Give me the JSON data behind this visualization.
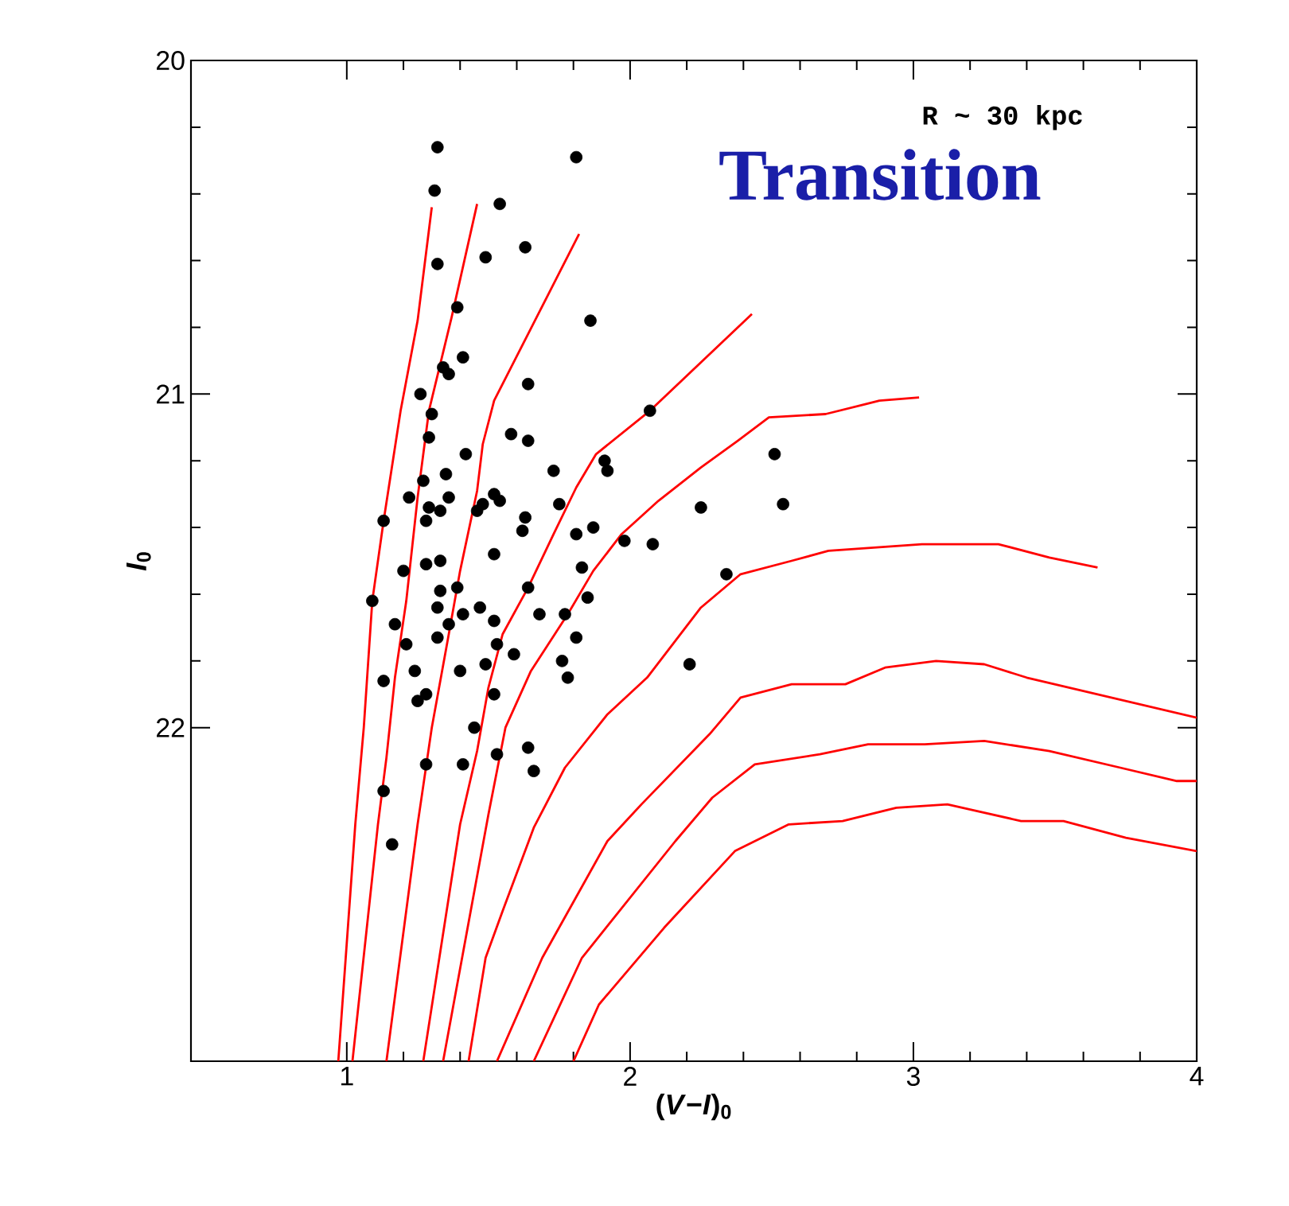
{
  "chart_data": {
    "type": "line",
    "title": "Transition",
    "annotations": [
      "R ~ 30 kpc"
    ],
    "xlabel": "(*V*−*I*)$_{0}$",
    "ylabel": "*I*$_{0}$",
    "xlim": [
      0.45,
      4
    ],
    "ylim": [
      23,
      20
    ],
    "xticks": [
      1,
      2,
      3,
      4
    ],
    "yticks": [
      20,
      21,
      22
    ],
    "series": [
      {
        "color": "#ff0000",
        "x": [
          0.97,
          1.03,
          1.06,
          1.09,
          1.13,
          1.19,
          1.25,
          1.3
        ],
        "values": [
          23,
          22.29,
          22.0,
          21.62,
          21.38,
          21.05,
          20.78,
          20.44
        ]
      },
      {
        "color": "#ff0000",
        "x": [
          1.02,
          1.11,
          1.14,
          1.17,
          1.21,
          1.25,
          1.29,
          1.37,
          1.46
        ],
        "values": [
          23,
          22.29,
          22.09,
          21.85,
          21.62,
          21.31,
          21.05,
          20.77,
          20.43
        ]
      },
      {
        "color": "#ff0000",
        "x": [
          1.14,
          1.25,
          1.3,
          1.36,
          1.4,
          1.46,
          1.48,
          1.52,
          1.67,
          1.82
        ],
        "values": [
          23,
          22.29,
          22.0,
          21.72,
          21.53,
          21.29,
          21.15,
          21.02,
          20.77,
          20.52
        ]
      },
      {
        "color": "#ff0000",
        "x": [
          1.27,
          1.4,
          1.46,
          1.5,
          1.55,
          1.64,
          1.73,
          1.81,
          1.88,
          2.07,
          2.43
        ],
        "values": [
          23,
          22.29,
          22.07,
          21.88,
          21.72,
          21.58,
          21.42,
          21.28,
          21.18,
          21.05,
          20.76
        ]
      },
      {
        "color": "#ff0000",
        "x": [
          1.34,
          1.5,
          1.56,
          1.65,
          1.78,
          1.87,
          1.97,
          2.1,
          2.25,
          2.38,
          2.49,
          2.69,
          2.88,
          3.02
        ],
        "values": [
          23,
          22.26,
          22.0,
          21.83,
          21.66,
          21.53,
          21.42,
          21.32,
          21.22,
          21.14,
          21.07,
          21.06,
          21.02,
          21.01
        ]
      },
      {
        "color": "#ff0000",
        "x": [
          1.43,
          1.49,
          1.55,
          1.66,
          1.77,
          1.92,
          2.06,
          2.25,
          2.39,
          2.57,
          2.7,
          3.03,
          3.3,
          3.48,
          3.65
        ],
        "values": [
          23,
          22.69,
          22.55,
          22.3,
          22.12,
          21.96,
          21.85,
          21.64,
          21.54,
          21.5,
          21.47,
          21.45,
          21.45,
          21.49,
          21.52
        ]
      },
      {
        "color": "#ff0000",
        "x": [
          1.53,
          1.69,
          1.92,
          2.04,
          2.28,
          2.39,
          2.57,
          2.76,
          2.9,
          3.08,
          3.25,
          3.4,
          4.0
        ],
        "values": [
          23,
          22.69,
          22.34,
          22.23,
          22.02,
          21.91,
          21.87,
          21.87,
          21.82,
          21.8,
          21.81,
          21.85,
          21.97
        ]
      },
      {
        "color": "#ff0000",
        "x": [
          1.66,
          1.83,
          2.16,
          2.29,
          2.44,
          2.67,
          2.84,
          3.04,
          3.25,
          3.48,
          3.73,
          3.93,
          4.0
        ],
        "values": [
          23,
          22.69,
          22.34,
          22.21,
          22.11,
          22.08,
          22.05,
          22.05,
          22.04,
          22.07,
          22.12,
          22.16,
          22.16
        ]
      },
      {
        "color": "#ff0000",
        "x": [
          1.8,
          1.89,
          2.12,
          2.37,
          2.56,
          2.75,
          2.94,
          3.12,
          3.38,
          3.53,
          3.75,
          4.0
        ],
        "values": [
          23,
          22.83,
          22.6,
          22.37,
          22.29,
          22.28,
          22.24,
          22.23,
          22.28,
          22.28,
          22.33,
          22.37
        ]
      },
      {
        "type": "scatter",
        "marker": "circle",
        "color": "#000000",
        "x": [
          1.32,
          1.31,
          1.54,
          1.81,
          1.63,
          1.49,
          1.32,
          1.39,
          1.86,
          1.41,
          1.34,
          1.36,
          1.26,
          1.64,
          2.07,
          1.3,
          1.29,
          1.58,
          1.64,
          1.42,
          1.73,
          1.91,
          1.92,
          1.27,
          1.35,
          1.22,
          1.29,
          1.36,
          1.33,
          1.28,
          1.46,
          1.48,
          1.52,
          1.54,
          1.75,
          1.63,
          1.62,
          1.81,
          1.87,
          1.98,
          2.08,
          1.13,
          1.52,
          1.83,
          1.2,
          1.28,
          1.33,
          1.33,
          1.39,
          1.64,
          1.32,
          1.09,
          1.36,
          1.41,
          1.47,
          1.52,
          1.68,
          1.77,
          1.85,
          1.17,
          1.32,
          1.53,
          1.59,
          1.81,
          1.21,
          1.24,
          1.13,
          1.4,
          1.49,
          1.52,
          1.76,
          1.78,
          1.28,
          1.25,
          1.45,
          1.64,
          1.66,
          1.53,
          1.28,
          1.41,
          1.13,
          1.16,
          2.51,
          2.54,
          2.25,
          2.34,
          2.21
        ],
        "values": [
          20.26,
          20.39,
          20.43,
          20.29,
          20.56,
          20.59,
          20.61,
          20.74,
          20.78,
          20.89,
          20.92,
          20.94,
          21.0,
          20.97,
          21.05,
          21.06,
          21.13,
          21.12,
          21.14,
          21.18,
          21.23,
          21.2,
          21.23,
          21.26,
          21.24,
          21.31,
          21.34,
          21.31,
          21.35,
          21.38,
          21.35,
          21.33,
          21.3,
          21.32,
          21.33,
          21.37,
          21.41,
          21.42,
          21.4,
          21.44,
          21.45,
          21.38,
          21.48,
          21.52,
          21.53,
          21.51,
          21.5,
          21.59,
          21.58,
          21.58,
          21.64,
          21.62,
          21.69,
          21.66,
          21.64,
          21.68,
          21.66,
          21.66,
          21.61,
          21.69,
          21.73,
          21.75,
          21.78,
          21.73,
          21.75,
          21.83,
          21.86,
          21.83,
          21.81,
          21.9,
          21.8,
          21.85,
          21.9,
          21.92,
          22.0,
          22.06,
          22.13,
          22.08,
          22.11,
          22.11,
          22.19,
          22.35,
          21.18,
          21.33,
          21.34,
          21.54,
          21.81
        ]
      }
    ]
  }
}
